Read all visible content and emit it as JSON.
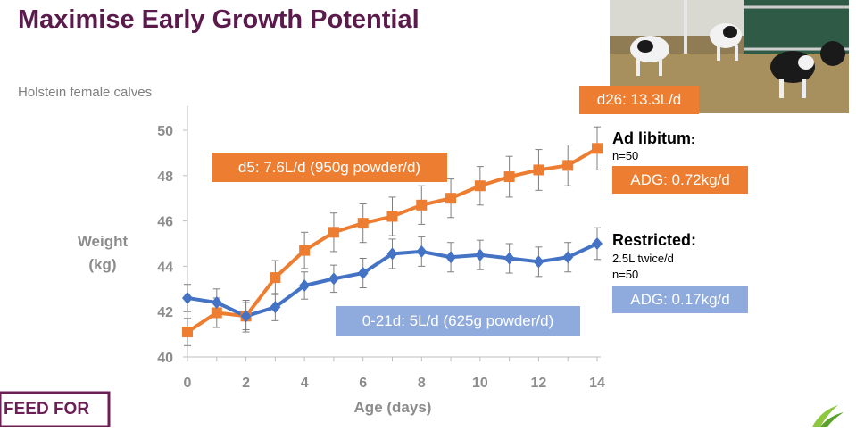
{
  "slide": {
    "title": "Maximise Early Growth Potential",
    "subtitle": "Holstein female calves"
  },
  "annotations": {
    "d26_box": "d26: 13.3L/d",
    "d5_box": "d5: 7.6L/d (950g powder/d)",
    "restricted_box": "0-21d: 5L/d (625g powder/d)",
    "adlib_title": "Ad libitum",
    "adlib_colon": ":",
    "adlib_n": "n=50",
    "adlib_adg": "ADG: 0.72kg/d",
    "restricted_title": "Restricted:",
    "restricted_detail": "2.5L twice/d",
    "restricted_n": "n=50",
    "restricted_adg": "ADG: 0.17kg/d"
  },
  "logo_text": "FEED FOR",
  "colors": {
    "title": "#5b1a4c",
    "ad_libitum": "#ed7d31",
    "restricted": "#4472c4",
    "restricted_box": "#8faadc"
  },
  "chart_data": {
    "type": "line",
    "xlabel": "Age (days)",
    "ylabel_line1": "Weight",
    "ylabel_line2": "(kg)",
    "x": [
      0,
      1,
      2,
      3,
      4,
      5,
      6,
      7,
      8,
      9,
      10,
      11,
      12,
      13,
      14
    ],
    "xticks": [
      0,
      2,
      4,
      6,
      8,
      10,
      12,
      14
    ],
    "yticks": [
      40,
      42,
      44,
      46,
      48,
      50
    ],
    "xlim": [
      0,
      14
    ],
    "ylim": [
      40,
      51
    ],
    "grid": false,
    "series": [
      {
        "name": "Ad libitum",
        "color": "#ed7d31",
        "marker": "square",
        "values": [
          41.1,
          41.95,
          41.8,
          43.5,
          44.7,
          45.5,
          45.9,
          46.2,
          46.7,
          47.0,
          47.55,
          47.95,
          48.25,
          48.45,
          49.2
        ],
        "error": [
          0.6,
          0.65,
          0.7,
          0.75,
          0.8,
          0.85,
          0.85,
          0.85,
          0.85,
          0.85,
          0.85,
          0.9,
          0.9,
          0.9,
          0.95
        ]
      },
      {
        "name": "Restricted",
        "color": "#4472c4",
        "marker": "diamond",
        "values": [
          42.6,
          42.4,
          41.8,
          42.2,
          43.15,
          43.45,
          43.7,
          44.55,
          44.65,
          44.4,
          44.5,
          44.35,
          44.2,
          44.4,
          45.0
        ],
        "error": [
          0.6,
          0.6,
          0.6,
          0.6,
          0.6,
          0.6,
          0.65,
          0.65,
          0.65,
          0.65,
          0.65,
          0.65,
          0.65,
          0.65,
          0.7
        ]
      }
    ]
  }
}
